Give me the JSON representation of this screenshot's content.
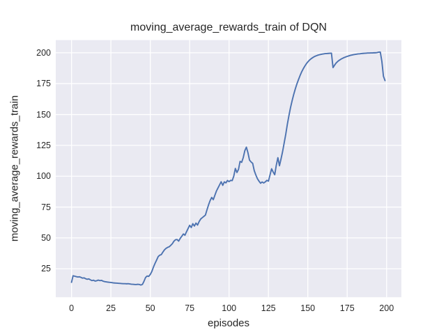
{
  "chart_data": {
    "type": "line",
    "title": "moving_average_rewards_train of DQN",
    "xlabel": "episodes",
    "ylabel": "moving_average_rewards_train",
    "xticks": [
      0,
      25,
      50,
      75,
      100,
      125,
      150,
      175,
      200
    ],
    "yticks": [
      25,
      50,
      75,
      100,
      125,
      150,
      175,
      200
    ],
    "xlim": [
      -10.0,
      209.4
    ],
    "ylim": [
      1.9,
      210.3
    ],
    "grid": true,
    "legend": "none",
    "colors": {
      "line": "#4C72B0",
      "plot_background": "#EAEAF2",
      "gridline": "#FFFFFF",
      "figure_background": "#FFFFFF",
      "text": "#262626"
    },
    "series": [
      {
        "name": "moving_average_rewards_train",
        "x_description": "episode index 0-199, step 1",
        "values": [
          14.0,
          19.3,
          19.0,
          18.6,
          18.3,
          18.5,
          18.0,
          17.4,
          17.6,
          16.9,
          16.5,
          16.8,
          16.0,
          15.4,
          15.7,
          15.0,
          15.3,
          15.8,
          15.4,
          15.6,
          15.0,
          14.6,
          14.4,
          14.2,
          14.0,
          13.9,
          13.7,
          13.5,
          13.4,
          13.3,
          13.2,
          13.1,
          13.0,
          12.9,
          12.9,
          12.8,
          12.9,
          12.7,
          12.5,
          12.4,
          12.3,
          12.2,
          12.4,
          12.3,
          11.8,
          12.3,
          14.8,
          17.9,
          19.1,
          18.8,
          20.4,
          22.8,
          26.3,
          29.3,
          32.0,
          34.8,
          36.0,
          36.5,
          38.5,
          40.3,
          41.5,
          42.3,
          42.8,
          44.0,
          45.3,
          47.3,
          48.5,
          48.7,
          47.4,
          49.6,
          51.3,
          53.2,
          52.2,
          55.0,
          57.6,
          60.2,
          58.4,
          61.5,
          59.6,
          62.0,
          60.4,
          63.2,
          65.3,
          66.4,
          67.4,
          68.5,
          72.8,
          76.8,
          80.3,
          82.8,
          81.0,
          84.5,
          88.0,
          90.5,
          93.0,
          95.5,
          92.6,
          95.4,
          94.6,
          96.5,
          95.6,
          96.6,
          96.4,
          100.0,
          106.3,
          103.0,
          105.5,
          112.0,
          111.2,
          115.0,
          120.6,
          123.5,
          119.0,
          113.0,
          111.5,
          110.4,
          104.5,
          101.0,
          98.0,
          96.0,
          94.3,
          95.3,
          94.5,
          95.4,
          96.6,
          96.0,
          101.0,
          106.0,
          103.4,
          101.2,
          109.0,
          115.0,
          108.5,
          114.0,
          120.0,
          127.0,
          134.0,
          142.0,
          149.0,
          155.5,
          161.0,
          166.0,
          170.5,
          174.5,
          178.0,
          181.3,
          184.3,
          186.8,
          189.0,
          191.0,
          192.6,
          194.0,
          195.1,
          196.0,
          196.8,
          197.4,
          197.9,
          198.3,
          198.6,
          198.9,
          199.1,
          199.3,
          199.4,
          199.5,
          199.6,
          199.7,
          188.0,
          190.0,
          191.8,
          193.0,
          194.0,
          194.8,
          195.5,
          196.1,
          196.6,
          197.1,
          197.5,
          197.9,
          198.2,
          198.5,
          198.7,
          198.9,
          199.1,
          199.2,
          199.4,
          199.5,
          199.6,
          199.7,
          199.8,
          199.8,
          199.9,
          199.9,
          200.0,
          200.0,
          200.2,
          200.5,
          200.6,
          193.0,
          181.0,
          177.5
        ]
      }
    ]
  }
}
